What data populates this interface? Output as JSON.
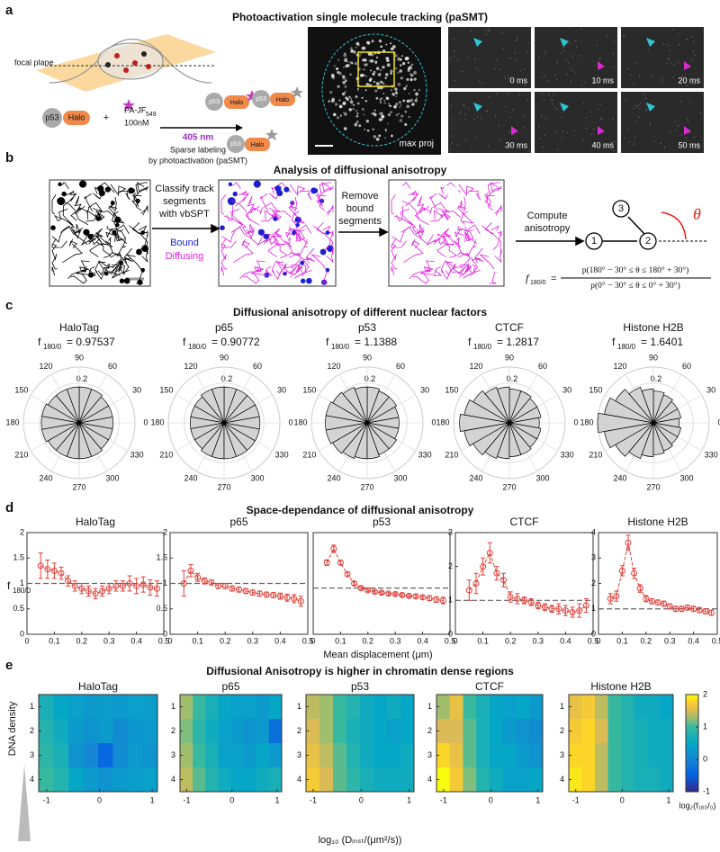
{
  "figure": {
    "a": {
      "label": "a",
      "title": "Photoactivation single molecule tracking (paSMT)",
      "focal_plane": "focal plane",
      "p53": "p53",
      "halo": "Halo",
      "plus": "+",
      "dye": "PA-JF",
      "dye_sub": "549",
      "conc": "100nM",
      "wavelength": "405 nm",
      "sparse_1": "Sparse labeling",
      "sparse_2": "by photoactivation (paSMT)",
      "max_proj": "max proj",
      "frames": [
        "0 ms",
        "10 ms",
        "20 ms",
        "30 ms",
        "40 ms",
        "50 ms"
      ]
    },
    "b": {
      "label": "b",
      "title": "Analysis of diffusional anisotropy",
      "classify": [
        "Classify track",
        "segments",
        "with vbSPT"
      ],
      "bound": "Bound",
      "diffusing": "Diffusing",
      "remove": [
        "Remove",
        "bound",
        "segments"
      ],
      "compute": [
        "Compute",
        "anisotropy"
      ],
      "nodes": [
        "1",
        "2",
        "3"
      ],
      "theta": "θ",
      "formula_f": "f",
      "formula_sub": "180/0",
      "formula_eq": "=",
      "numerator": "p(180° − 30° ≤ θ ≤ 180° + 30°)",
      "denominator": "p(0° − 30° ≤ θ ≤ 0° + 30°)"
    },
    "c": {
      "label": "c",
      "title": "Diffusional anisotropy  of different nuclear factors"
    },
    "d": {
      "label": "d",
      "title": "Space-dependance of diffusional anisotropy",
      "ylabel": "f",
      "ylabel_sub": "180/0",
      "xlabel": "Mean displacement (μm)"
    },
    "e": {
      "label": "e",
      "title": "Diffusional Anisotropy is higher in chromatin dense regions",
      "ylabel": "DNA density",
      "xlabel": "log₁₀ (Dᵢₙₛₜ/(μm²/s))",
      "colorbar_label": "log₂(f₁₈₀/₀)"
    }
  },
  "chart_data": [
    {
      "type": "polar",
      "title": "HaloTag",
      "anisotropy_symbol": "f",
      "anisotropy_subscript": "180/0",
      "anisotropy": {
        "value": 0.97537,
        "label": "= 0.97537"
      },
      "theta": [
        0,
        20,
        40,
        60,
        80,
        100,
        120,
        140,
        160,
        180,
        200,
        220,
        240,
        260,
        280,
        300,
        320,
        340
      ],
      "values": [
        0.17,
        0.17,
        0.17,
        0.18,
        0.18,
        0.18,
        0.18,
        0.18,
        0.19,
        0.19,
        0.19,
        0.18,
        0.18,
        0.18,
        0.18,
        0.18,
        0.17,
        0.17
      ],
      "rlim": [
        0,
        0.28
      ],
      "rticks": [
        0.1,
        0.2
      ],
      "thetaticks": [
        0,
        30,
        60,
        90,
        120,
        150,
        180,
        210,
        240,
        270,
        300,
        330
      ],
      "color": "#d3d3d3"
    },
    {
      "type": "polar",
      "title": "p65",
      "anisotropy_symbol": "f",
      "anisotropy_subscript": "180/0",
      "anisotropy": {
        "value": 0.90772,
        "label": "= 0.90772"
      },
      "theta": [
        0,
        20,
        40,
        60,
        80,
        100,
        120,
        140,
        160,
        180,
        200,
        220,
        240,
        260,
        280,
        300,
        320,
        340
      ],
      "values": [
        0.18,
        0.18,
        0.18,
        0.18,
        0.18,
        0.18,
        0.18,
        0.17,
        0.17,
        0.17,
        0.17,
        0.17,
        0.18,
        0.18,
        0.18,
        0.18,
        0.18,
        0.18
      ],
      "rlim": [
        0,
        0.28
      ],
      "rticks": [
        0.1,
        0.2
      ],
      "thetaticks": [
        0,
        30,
        60,
        90,
        120,
        150,
        180,
        210,
        240,
        270,
        300,
        330
      ],
      "color": "#d3d3d3"
    },
    {
      "type": "polar",
      "title": "p53",
      "anisotropy_symbol": "f",
      "anisotropy_subscript": "180/0",
      "anisotropy": {
        "value": 1.1388,
        "label": "= 1.1388"
      },
      "theta": [
        0,
        20,
        40,
        60,
        80,
        100,
        120,
        140,
        160,
        180,
        200,
        220,
        240,
        260,
        280,
        300,
        320,
        340
      ],
      "values": [
        0.16,
        0.16,
        0.17,
        0.17,
        0.18,
        0.18,
        0.19,
        0.2,
        0.21,
        0.21,
        0.21,
        0.2,
        0.19,
        0.18,
        0.18,
        0.17,
        0.17,
        0.16
      ],
      "rlim": [
        0,
        0.28
      ],
      "rticks": [
        0.1,
        0.2
      ],
      "thetaticks": [
        0,
        30,
        60,
        90,
        120,
        150,
        180,
        210,
        240,
        270,
        300,
        330
      ],
      "color": "#d3d3d3"
    },
    {
      "type": "polar",
      "title": "CTCF",
      "anisotropy_symbol": "f",
      "anisotropy_subscript": "180/0",
      "anisotropy": {
        "value": 1.2817,
        "label": "= 1.2817"
      },
      "theta": [
        0,
        20,
        40,
        60,
        80,
        100,
        120,
        140,
        160,
        180,
        200,
        220,
        240,
        260,
        280,
        300,
        320,
        340
      ],
      "values": [
        0.15,
        0.16,
        0.16,
        0.17,
        0.17,
        0.18,
        0.19,
        0.21,
        0.23,
        0.25,
        0.23,
        0.21,
        0.19,
        0.18,
        0.17,
        0.17,
        0.16,
        0.16
      ],
      "rlim": [
        0,
        0.28
      ],
      "rticks": [
        0.1,
        0.2
      ],
      "thetaticks": [
        0,
        30,
        60,
        90,
        120,
        150,
        180,
        210,
        240,
        270,
        300,
        330
      ],
      "color": "#d3d3d3"
    },
    {
      "type": "polar",
      "title": "Histone H2B",
      "anisotropy_symbol": "f",
      "anisotropy_subscript": "180/0",
      "anisotropy": {
        "value": 1.6401,
        "label": "= 1.6401"
      },
      "theta": [
        0,
        20,
        40,
        60,
        80,
        100,
        120,
        140,
        160,
        180,
        200,
        220,
        240,
        260,
        280,
        300,
        320,
        340
      ],
      "values": [
        0.13,
        0.14,
        0.14,
        0.15,
        0.16,
        0.17,
        0.19,
        0.22,
        0.25,
        0.28,
        0.25,
        0.22,
        0.19,
        0.17,
        0.16,
        0.15,
        0.14,
        0.14
      ],
      "rlim": [
        0,
        0.28
      ],
      "rticks": [
        0.1,
        0.2
      ],
      "thetaticks": [
        0,
        30,
        60,
        90,
        120,
        150,
        180,
        210,
        240,
        270,
        300,
        330
      ],
      "color": "#d3d3d3"
    },
    {
      "type": "errorline",
      "title": "HaloTag",
      "color": "#e0403a",
      "hline": 1,
      "x": [
        0.05,
        0.075,
        0.1,
        0.125,
        0.15,
        0.175,
        0.2,
        0.225,
        0.25,
        0.275,
        0.3,
        0.325,
        0.35,
        0.375,
        0.4,
        0.425,
        0.45,
        0.475
      ],
      "values": [
        1.35,
        1.28,
        1.25,
        1.2,
        1.05,
        0.95,
        0.9,
        0.85,
        0.8,
        0.85,
        0.9,
        0.95,
        0.95,
        1.0,
        0.95,
        0.98,
        0.92,
        0.9
      ],
      "errors": [
        0.25,
        0.18,
        0.15,
        0.12,
        0.1,
        0.1,
        0.1,
        0.1,
        0.1,
        0.1,
        0.1,
        0.1,
        0.1,
        0.15,
        0.15,
        0.15,
        0.15,
        0.15
      ],
      "xlim": [
        0,
        0.5
      ],
      "xticks": [
        0,
        0.1,
        0.2,
        0.3,
        0.4,
        0.5
      ],
      "ylim": [
        0,
        2
      ],
      "yticks": [
        0,
        0.5,
        1,
        1.5,
        2
      ]
    },
    {
      "type": "errorline",
      "title": "p65",
      "color": "#e0403a",
      "hline": 1,
      "x": [
        0.05,
        0.075,
        0.1,
        0.125,
        0.15,
        0.175,
        0.2,
        0.225,
        0.25,
        0.275,
        0.3,
        0.325,
        0.35,
        0.375,
        0.4,
        0.425,
        0.45,
        0.475
      ],
      "values": [
        1.0,
        1.25,
        1.12,
        1.05,
        1.02,
        0.95,
        0.95,
        0.9,
        0.88,
        0.85,
        0.82,
        0.8,
        0.78,
        0.77,
        0.75,
        0.72,
        0.7,
        0.65
      ],
      "errors": [
        0.25,
        0.12,
        0.08,
        0.06,
        0.05,
        0.05,
        0.05,
        0.05,
        0.05,
        0.05,
        0.05,
        0.05,
        0.05,
        0.05,
        0.06,
        0.07,
        0.08,
        0.1
      ],
      "xlim": [
        0,
        0.5
      ],
      "xticks": [
        0,
        0.1,
        0.2,
        0.3,
        0.4,
        0.5
      ],
      "ylim": [
        0,
        2
      ],
      "yticks": [
        0,
        0.5,
        1,
        1.5,
        2
      ]
    },
    {
      "type": "errorline",
      "title": "p53",
      "color": "#e0403a",
      "hline": 1,
      "x": [
        0.05,
        0.075,
        0.1,
        0.125,
        0.15,
        0.175,
        0.2,
        0.225,
        0.25,
        0.275,
        0.3,
        0.325,
        0.35,
        0.375,
        0.4,
        0.425,
        0.45,
        0.475
      ],
      "values": [
        1.55,
        1.85,
        1.55,
        1.3,
        1.1,
        1.0,
        0.95,
        0.92,
        0.9,
        0.88,
        0.87,
        0.85,
        0.83,
        0.82,
        0.8,
        0.78,
        0.75,
        0.73
      ],
      "errors": [
        0.06,
        0.08,
        0.05,
        0.04,
        0.04,
        0.03,
        0.03,
        0.03,
        0.03,
        0.03,
        0.03,
        0.03,
        0.03,
        0.04,
        0.04,
        0.05,
        0.06,
        0.07
      ],
      "xlim": [
        0,
        0.5
      ],
      "xticks": [
        0,
        0.1,
        0.2,
        0.3,
        0.4,
        0.5
      ],
      "ylim": [
        0,
        2.2
      ]
    },
    {
      "type": "errorline",
      "title": "CTCF",
      "color": "#e0403a",
      "hline": 1,
      "x": [
        0.05,
        0.075,
        0.1,
        0.125,
        0.15,
        0.175,
        0.2,
        0.225,
        0.25,
        0.275,
        0.3,
        0.325,
        0.35,
        0.375,
        0.4,
        0.425,
        0.45,
        0.475
      ],
      "values": [
        1.3,
        1.5,
        2.0,
        2.4,
        1.8,
        1.6,
        1.1,
        1.05,
        1.0,
        0.95,
        0.85,
        0.8,
        0.75,
        0.75,
        0.7,
        0.65,
        0.7,
        0.85
      ],
      "errors": [
        0.3,
        0.3,
        0.25,
        0.3,
        0.2,
        0.2,
        0.15,
        0.15,
        0.1,
        0.1,
        0.1,
        0.1,
        0.1,
        0.15,
        0.15,
        0.15,
        0.2,
        0.2
      ],
      "xlim": [
        0,
        0.5
      ],
      "xticks": [
        0,
        0.1,
        0.2,
        0.3,
        0.4,
        0.5
      ],
      "ylim": [
        0,
        3
      ],
      "yticks": [
        0,
        1,
        2,
        3
      ]
    },
    {
      "type": "errorline",
      "title": "Histone H2B",
      "color": "#e0403a",
      "hline": 1,
      "x": [
        0.05,
        0.075,
        0.1,
        0.125,
        0.15,
        0.175,
        0.2,
        0.225,
        0.25,
        0.275,
        0.3,
        0.325,
        0.35,
        0.375,
        0.4,
        0.425,
        0.45,
        0.475
      ],
      "values": [
        1.4,
        1.5,
        2.5,
        3.6,
        2.4,
        1.8,
        1.4,
        1.3,
        1.25,
        1.2,
        1.1,
        1.0,
        1.0,
        1.05,
        1.0,
        0.95,
        0.9,
        0.85
      ],
      "errors": [
        0.2,
        0.2,
        0.2,
        0.3,
        0.2,
        0.15,
        0.12,
        0.1,
        0.1,
        0.1,
        0.1,
        0.1,
        0.1,
        0.1,
        0.1,
        0.1,
        0.1,
        0.1
      ],
      "xlim": [
        0,
        0.5
      ],
      "xticks": [
        0,
        0.1,
        0.2,
        0.3,
        0.4,
        0.5
      ],
      "ylim": [
        0,
        4
      ],
      "yticks": [
        0,
        1,
        2,
        3,
        4
      ]
    },
    {
      "type": "heatmap",
      "title": "HaloTag",
      "colormap": "parula",
      "clim": [
        -1,
        2
      ],
      "xlim": [
        -1.15,
        1.1
      ],
      "xticks": [
        -1,
        0,
        1
      ],
      "ylim": [
        0.5,
        4.5
      ],
      "yticks": [
        1,
        2,
        3,
        4
      ],
      "values": [
        [
          0.7,
          0.5,
          0.4,
          0.3,
          0.35,
          0.3,
          0.4,
          0.35
        ],
        [
          0.8,
          0.6,
          0.3,
          0.2,
          0.3,
          0.1,
          0.25,
          0.3
        ],
        [
          0.9,
          0.7,
          0.2,
          0.0,
          -0.4,
          0.1,
          0.3,
          0.2
        ],
        [
          1.0,
          0.8,
          0.5,
          0.3,
          0.2,
          0.3,
          0.35,
          0.4
        ]
      ]
    },
    {
      "type": "heatmap",
      "title": "p65",
      "colormap": "parula",
      "clim": [
        -1,
        2
      ],
      "xlim": [
        -1.15,
        1.1
      ],
      "xticks": [
        -1,
        0,
        1
      ],
      "ylim": [
        0.5,
        4.5
      ],
      "yticks": [
        1,
        2,
        3,
        4
      ],
      "values": [
        [
          1.3,
          1.0,
          0.7,
          0.5,
          0.4,
          0.4,
          0.3,
          0.5
        ],
        [
          1.2,
          0.9,
          0.6,
          0.4,
          0.3,
          0.2,
          0.3,
          -0.3
        ],
        [
          1.3,
          1.0,
          0.7,
          0.4,
          0.4,
          0.3,
          0.5,
          0.3
        ],
        [
          1.4,
          1.1,
          0.8,
          0.6,
          0.5,
          0.5,
          0.6,
          0.7
        ]
      ]
    },
    {
      "type": "heatmap",
      "title": "p53",
      "colormap": "parula",
      "clim": [
        -1,
        2
      ],
      "xlim": [
        -1.15,
        1.1
      ],
      "xticks": [
        -1,
        0,
        1
      ],
      "ylim": [
        0.5,
        4.5
      ],
      "yticks": [
        1,
        2,
        3,
        4
      ],
      "values": [
        [
          1.4,
          1.3,
          1.0,
          0.8,
          0.6,
          0.5,
          0.6,
          0.5
        ],
        [
          1.5,
          1.3,
          1.0,
          0.7,
          0.6,
          0.5,
          0.4,
          0.5
        ],
        [
          1.6,
          1.4,
          1.1,
          0.8,
          0.6,
          0.5,
          0.5,
          0.6
        ],
        [
          1.7,
          1.5,
          1.1,
          0.9,
          0.7,
          0.6,
          0.6,
          0.6
        ]
      ]
    },
    {
      "type": "heatmap",
      "title": "CTCF",
      "colormap": "parula",
      "clim": [
        -1,
        2
      ],
      "xlim": [
        -1.15,
        1.1
      ],
      "xticks": [
        -1,
        0,
        1
      ],
      "ylim": [
        0.5,
        4.5
      ],
      "yticks": [
        1,
        2,
        3,
        4
      ],
      "values": [
        [
          1.3,
          1.6,
          1.0,
          0.7,
          0.5,
          0.4,
          0.5,
          0.3
        ],
        [
          1.5,
          1.5,
          1.1,
          0.7,
          0.5,
          0.3,
          0.2,
          0.1
        ],
        [
          1.8,
          1.6,
          1.1,
          0.7,
          0.5,
          0.5,
          0.3,
          0.2
        ],
        [
          2.0,
          1.7,
          1.2,
          0.8,
          0.6,
          0.4,
          0.4,
          0.5
        ]
      ]
    },
    {
      "type": "heatmap",
      "title": "Histone H2B",
      "colormap": "parula",
      "clim": [
        -1,
        2
      ],
      "xlim": [
        -1.15,
        1.1
      ],
      "xticks": [
        -1,
        0,
        1
      ],
      "ylim": [
        0.5,
        4.5
      ],
      "yticks": [
        1,
        2,
        3,
        4
      ],
      "values": [
        [
          1.6,
          1.7,
          1.4,
          1.0,
          0.8,
          0.6,
          0.6,
          0.5
        ],
        [
          1.7,
          1.8,
          1.5,
          1.0,
          0.8,
          0.7,
          0.6,
          0.6
        ],
        [
          1.8,
          1.8,
          1.4,
          1.0,
          0.8,
          0.7,
          0.6,
          0.6
        ],
        [
          1.9,
          1.8,
          1.4,
          1.0,
          0.8,
          0.7,
          0.7,
          0.6
        ]
      ],
      "colorbar_ticks": [
        -1,
        0,
        1,
        2
      ]
    }
  ]
}
